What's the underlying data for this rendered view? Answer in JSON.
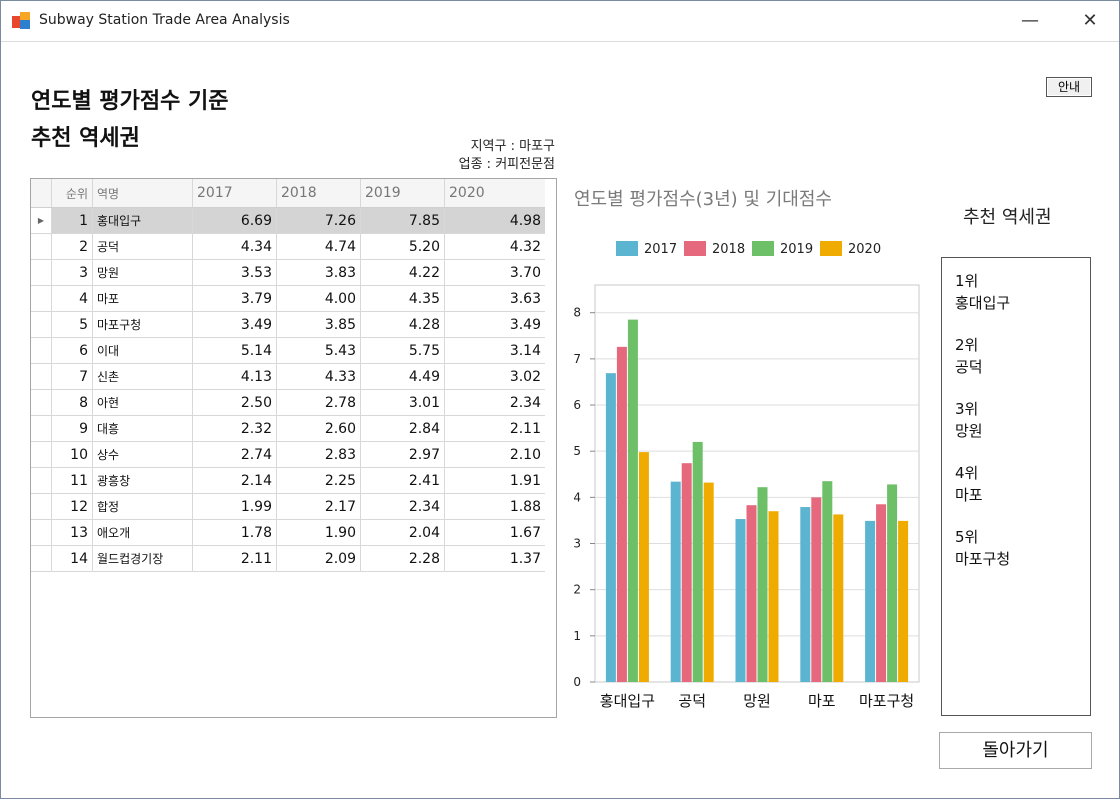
{
  "window": {
    "title": "Subway Station Trade Area Analysis",
    "minimize": "—",
    "close": "✕"
  },
  "heading": {
    "line1": "연도별 평가점수 기준",
    "line2": "추천 역세권"
  },
  "help_button": "안내",
  "meta": {
    "district": "지역구 : 마포구",
    "business": "업종 : 커피전문점"
  },
  "table": {
    "headers": [
      "순위",
      "역명",
      "2017",
      "2018",
      "2019",
      "2020"
    ],
    "rows": [
      {
        "rank": "1",
        "name": "홍대입구",
        "v": [
          "6.69",
          "7.26",
          "7.85",
          "4.98"
        ]
      },
      {
        "rank": "2",
        "name": "공덕",
        "v": [
          "4.34",
          "4.74",
          "5.20",
          "4.32"
        ]
      },
      {
        "rank": "3",
        "name": "망원",
        "v": [
          "3.53",
          "3.83",
          "4.22",
          "3.70"
        ]
      },
      {
        "rank": "4",
        "name": "마포",
        "v": [
          "3.79",
          "4.00",
          "4.35",
          "3.63"
        ]
      },
      {
        "rank": "5",
        "name": "마포구청",
        "v": [
          "3.49",
          "3.85",
          "4.28",
          "3.49"
        ]
      },
      {
        "rank": "6",
        "name": "이대",
        "v": [
          "5.14",
          "5.43",
          "5.75",
          "3.14"
        ]
      },
      {
        "rank": "7",
        "name": "신촌",
        "v": [
          "4.13",
          "4.33",
          "4.49",
          "3.02"
        ]
      },
      {
        "rank": "8",
        "name": "아현",
        "v": [
          "2.50",
          "2.78",
          "3.01",
          "2.34"
        ]
      },
      {
        "rank": "9",
        "name": "대흥",
        "v": [
          "2.32",
          "2.60",
          "2.84",
          "2.11"
        ]
      },
      {
        "rank": "10",
        "name": "상수",
        "v": [
          "2.74",
          "2.83",
          "2.97",
          "2.10"
        ]
      },
      {
        "rank": "11",
        "name": "광흥창",
        "v": [
          "2.14",
          "2.25",
          "2.41",
          "1.91"
        ]
      },
      {
        "rank": "12",
        "name": "합정",
        "v": [
          "1.99",
          "2.17",
          "2.34",
          "1.88"
        ]
      },
      {
        "rank": "13",
        "name": "애오개",
        "v": [
          "1.78",
          "1.90",
          "2.04",
          "1.67"
        ]
      },
      {
        "rank": "14",
        "name": "월드컵경기장",
        "v": [
          "2.11",
          "2.09",
          "2.28",
          "1.37"
        ]
      }
    ]
  },
  "chart_data": {
    "type": "bar",
    "title": "연도별 평가점수(3년) 및 기대점수",
    "categories": [
      "홍대입구",
      "공덕",
      "망원",
      "마포",
      "마포구청"
    ],
    "series": [
      {
        "name": "2017",
        "color": "#5bb5d0",
        "values": [
          6.69,
          4.34,
          3.53,
          3.79,
          3.49
        ]
      },
      {
        "name": "2018",
        "color": "#e5687c",
        "values": [
          7.26,
          4.74,
          3.83,
          4.0,
          3.85
        ]
      },
      {
        "name": "2019",
        "color": "#6dbf68",
        "values": [
          7.85,
          5.2,
          4.22,
          4.35,
          4.28
        ]
      },
      {
        "name": "2020",
        "color": "#f0ab00",
        "values": [
          4.98,
          4.32,
          3.7,
          3.63,
          3.49
        ]
      }
    ],
    "ylim": [
      0,
      8.6
    ],
    "yticks": [
      "0",
      "1",
      "2",
      "3",
      "4",
      "5",
      "6",
      "7",
      "8"
    ],
    "legend": "top",
    "grid": true
  },
  "recommend": {
    "title": "추천 역세권",
    "items": [
      {
        "rank": "1위",
        "name": "홍대입구"
      },
      {
        "rank": "2위",
        "name": "공덕"
      },
      {
        "rank": "3위",
        "name": "망원"
      },
      {
        "rank": "4위",
        "name": "마포"
      },
      {
        "rank": "5위",
        "name": "마포구청"
      }
    ]
  },
  "back_button": "돌아가기"
}
